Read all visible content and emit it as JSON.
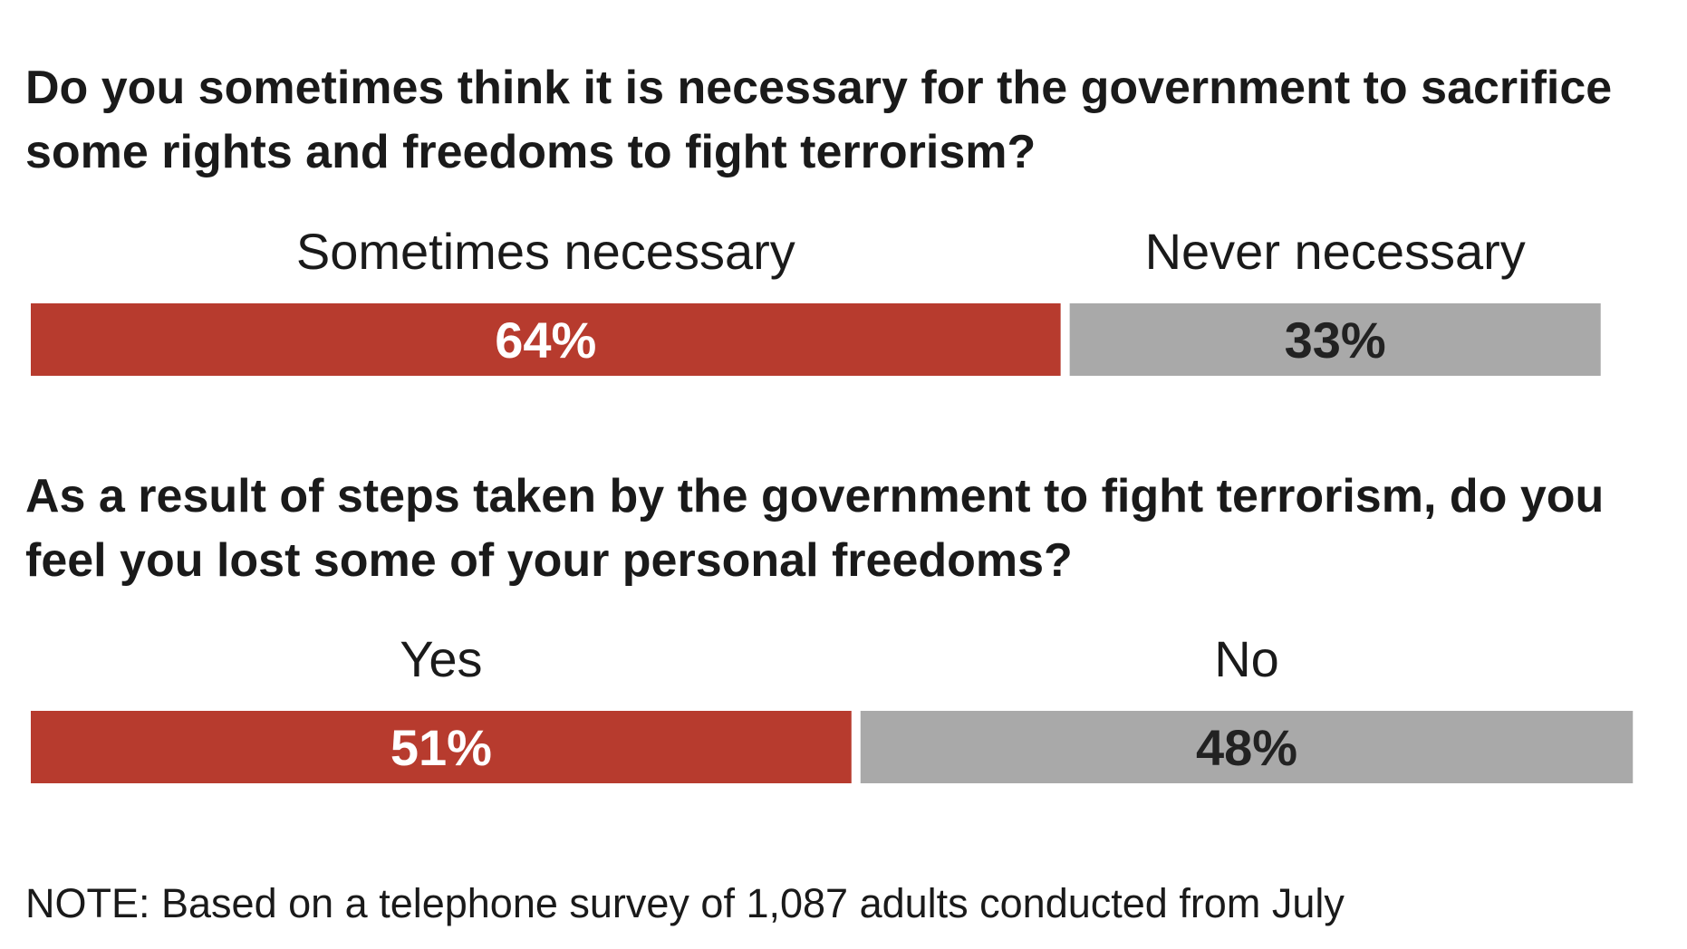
{
  "chart_data": [
    {
      "type": "bar",
      "orientation": "horizontal-stacked",
      "title": "Do you sometimes think it is necessary for the government to sacrifice some rights and freedoms to fight terrorism?",
      "categories": [
        "Sometimes necessary",
        "Never necessary"
      ],
      "values": [
        64,
        33
      ],
      "value_labels": [
        "64%",
        "33%"
      ],
      "colors": [
        "#b73b2e",
        "#a9a9a9"
      ],
      "label_colors": [
        "#ffffff",
        "#222222"
      ],
      "xlim": [
        0,
        100
      ]
    },
    {
      "type": "bar",
      "orientation": "horizontal-stacked",
      "title": "As a result of steps taken by the government to fight terrorism, do you feel you lost some of your personal freedoms?",
      "categories": [
        "Yes",
        "No"
      ],
      "values": [
        51,
        48
      ],
      "value_labels": [
        "51%",
        "48%"
      ],
      "colors": [
        "#b73b2e",
        "#a9a9a9"
      ],
      "label_colors": [
        "#ffffff",
        "#222222"
      ],
      "xlim": [
        0,
        100
      ]
    }
  ],
  "note": "NOTE: Based on a telephone survey of 1,087 adults conducted from July"
}
